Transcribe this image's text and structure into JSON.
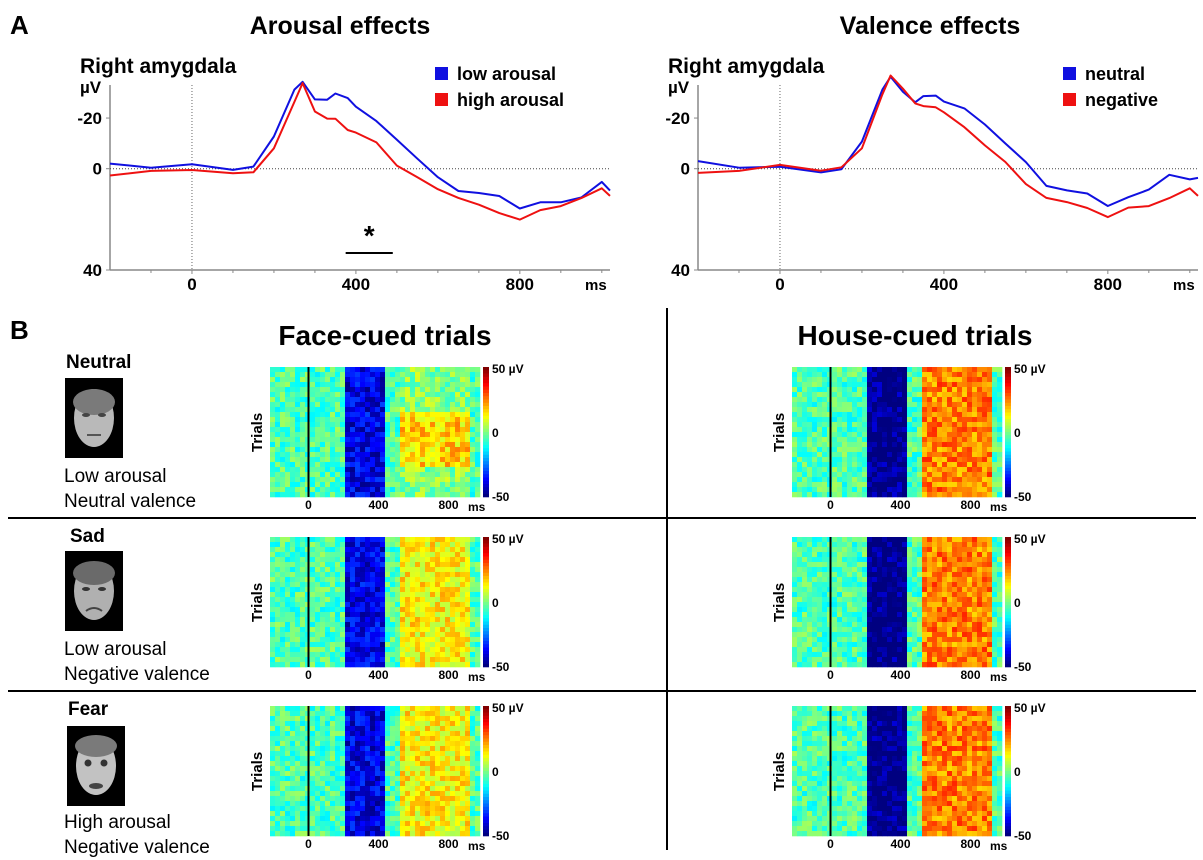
{
  "panel_a": {
    "letter": "A",
    "plots": [
      {
        "title": "Arousal effects",
        "region": "Right amygdala",
        "unit": "µV",
        "y_ticks": [
          "-20",
          "0",
          "40"
        ],
        "x_ticks": [
          "0",
          "400",
          "800"
        ],
        "x_unit": "ms",
        "legend": [
          "low arousal",
          "high arousal"
        ],
        "significance": "*"
      },
      {
        "title": "Valence effects",
        "region": "Right amygdala",
        "unit": "µV",
        "y_ticks": [
          "-20",
          "0",
          "40"
        ],
        "x_ticks": [
          "0",
          "400",
          "800"
        ],
        "x_unit": "ms",
        "legend": [
          "neutral",
          "negative"
        ]
      }
    ]
  },
  "panel_b": {
    "letter": "B",
    "columns": [
      "Face-cued trials",
      "House-cued trials"
    ],
    "conditions": [
      {
        "name": "Neutral",
        "arousal": "Low arousal",
        "valence": "Neutral valence"
      },
      {
        "name": "Sad",
        "arousal": "Low arousal",
        "valence": "Negative valence"
      },
      {
        "name": "Fear",
        "arousal": "High arousal",
        "valence": "Negative valence"
      }
    ],
    "heatmap": {
      "ylabel": "Trials",
      "x_ticks": [
        "0",
        "400",
        "800"
      ],
      "x_unit": "ms",
      "cbar_max": "50 µV",
      "cbar_mid": "0",
      "cbar_min": "-50"
    }
  },
  "colors": {
    "blue": "#1010e0",
    "red": "#ee1111"
  },
  "chart_data": [
    {
      "type": "line",
      "title": "Arousal effects",
      "subtitle": "Right amygdala",
      "xlabel": "ms",
      "ylabel": "µV",
      "xlim": [
        -200,
        1020
      ],
      "ylim": [
        -37,
        40
      ],
      "x": [
        -200,
        -100,
        0,
        100,
        150,
        200,
        250,
        270,
        300,
        330,
        350,
        380,
        400,
        450,
        500,
        550,
        600,
        650,
        700,
        750,
        800,
        850,
        900,
        950,
        1000,
        1020
      ],
      "series": [
        {
          "name": "low arousal",
          "color": "#1010e0",
          "values": [
            -2,
            -1,
            -1,
            0,
            -1,
            -12,
            -32,
            -34,
            -27,
            -28,
            -29,
            -28,
            -25,
            -18,
            -12,
            -4,
            4,
            8,
            10,
            11,
            15,
            14,
            13,
            11,
            6,
            8
          ]
        },
        {
          "name": "high arousal",
          "color": "#ee1111",
          "values": [
            2,
            1,
            1,
            1,
            2,
            -8,
            -27,
            -33,
            -23,
            -20,
            -19,
            -16,
            -14,
            -10,
            -2,
            4,
            8,
            11,
            15,
            17,
            20,
            17,
            14,
            12,
            8,
            10
          ]
        }
      ],
      "annotations": [
        {
          "text": "*",
          "x_range": [
            375,
            490
          ]
        }
      ]
    },
    {
      "type": "line",
      "title": "Valence effects",
      "subtitle": "Right amygdala",
      "xlabel": "ms",
      "ylabel": "µV",
      "xlim": [
        -200,
        1020
      ],
      "ylim": [
        -37,
        40
      ],
      "x": [
        -200,
        -100,
        0,
        100,
        150,
        200,
        250,
        270,
        300,
        330,
        350,
        380,
        400,
        450,
        500,
        550,
        600,
        650,
        700,
        750,
        800,
        850,
        900,
        950,
        1000,
        1020
      ],
      "series": [
        {
          "name": "neutral",
          "color": "#1010e0",
          "values": [
            -3,
            -1,
            0,
            1,
            0,
            -10,
            -32,
            -36,
            -30,
            -27,
            -28,
            -29,
            -27,
            -23,
            -18,
            -10,
            -2,
            6,
            9,
            10,
            14,
            12,
            8,
            2,
            5,
            3
          ]
        },
        {
          "name": "negative",
          "color": "#ee1111",
          "values": [
            1,
            1,
            -1,
            0,
            0,
            -8,
            -30,
            -36,
            -32,
            -26,
            -24,
            -25,
            -22,
            -16,
            -10,
            -2,
            6,
            11,
            14,
            15,
            19,
            16,
            14,
            12,
            8,
            10
          ]
        }
      ]
    }
  ]
}
